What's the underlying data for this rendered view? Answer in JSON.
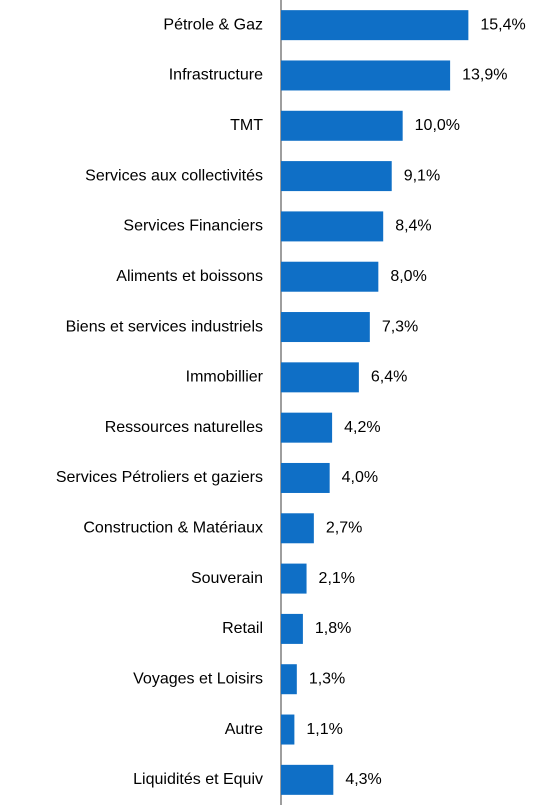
{
  "chart_data": {
    "type": "barh",
    "categories": [
      "Pétrole & Gaz",
      "Infrastructure",
      "TMT",
      "Services aux collectivités",
      "Services Financiers",
      "Aliments et boissons",
      "Biens et services industriels",
      "Immobillier",
      "Ressources naturelles",
      "Services Pétroliers et gaziers",
      "Construction & Matériaux",
      "Souverain",
      "Retail",
      "Voyages et Loisirs",
      "Autre",
      "Liquidités et Equiv"
    ],
    "values": [
      15.4,
      13.9,
      10.0,
      9.1,
      8.4,
      8.0,
      7.3,
      6.4,
      4.2,
      4.0,
      2.7,
      2.1,
      1.8,
      1.3,
      1.1,
      4.3
    ],
    "value_labels": [
      "15,4%",
      "13,9%",
      "10,0%",
      "9,1%",
      "8,4%",
      "8,0%",
      "7,3%",
      "6,4%",
      "4,2%",
      "4,0%",
      "2,7%",
      "2,1%",
      "1,8%",
      "1,3%",
      "1,1%",
      "4,3%"
    ],
    "color": "#0f6fc6",
    "xlim": [
      0,
      18
    ]
  }
}
